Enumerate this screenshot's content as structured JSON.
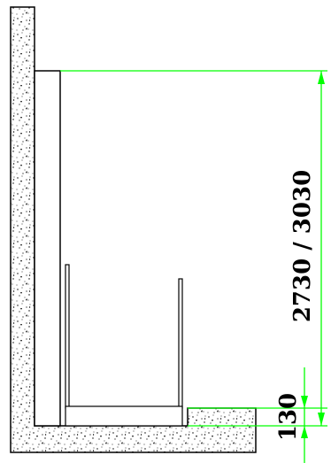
{
  "drawing": {
    "type": "section-detail",
    "colors": {
      "line": "#000000",
      "dimension": "#00ff00",
      "fill": "#ffffff",
      "concrete_dots": "#000000"
    },
    "dimensions": {
      "overall_height": "2730  /  3030",
      "base_offset": "130"
    }
  }
}
